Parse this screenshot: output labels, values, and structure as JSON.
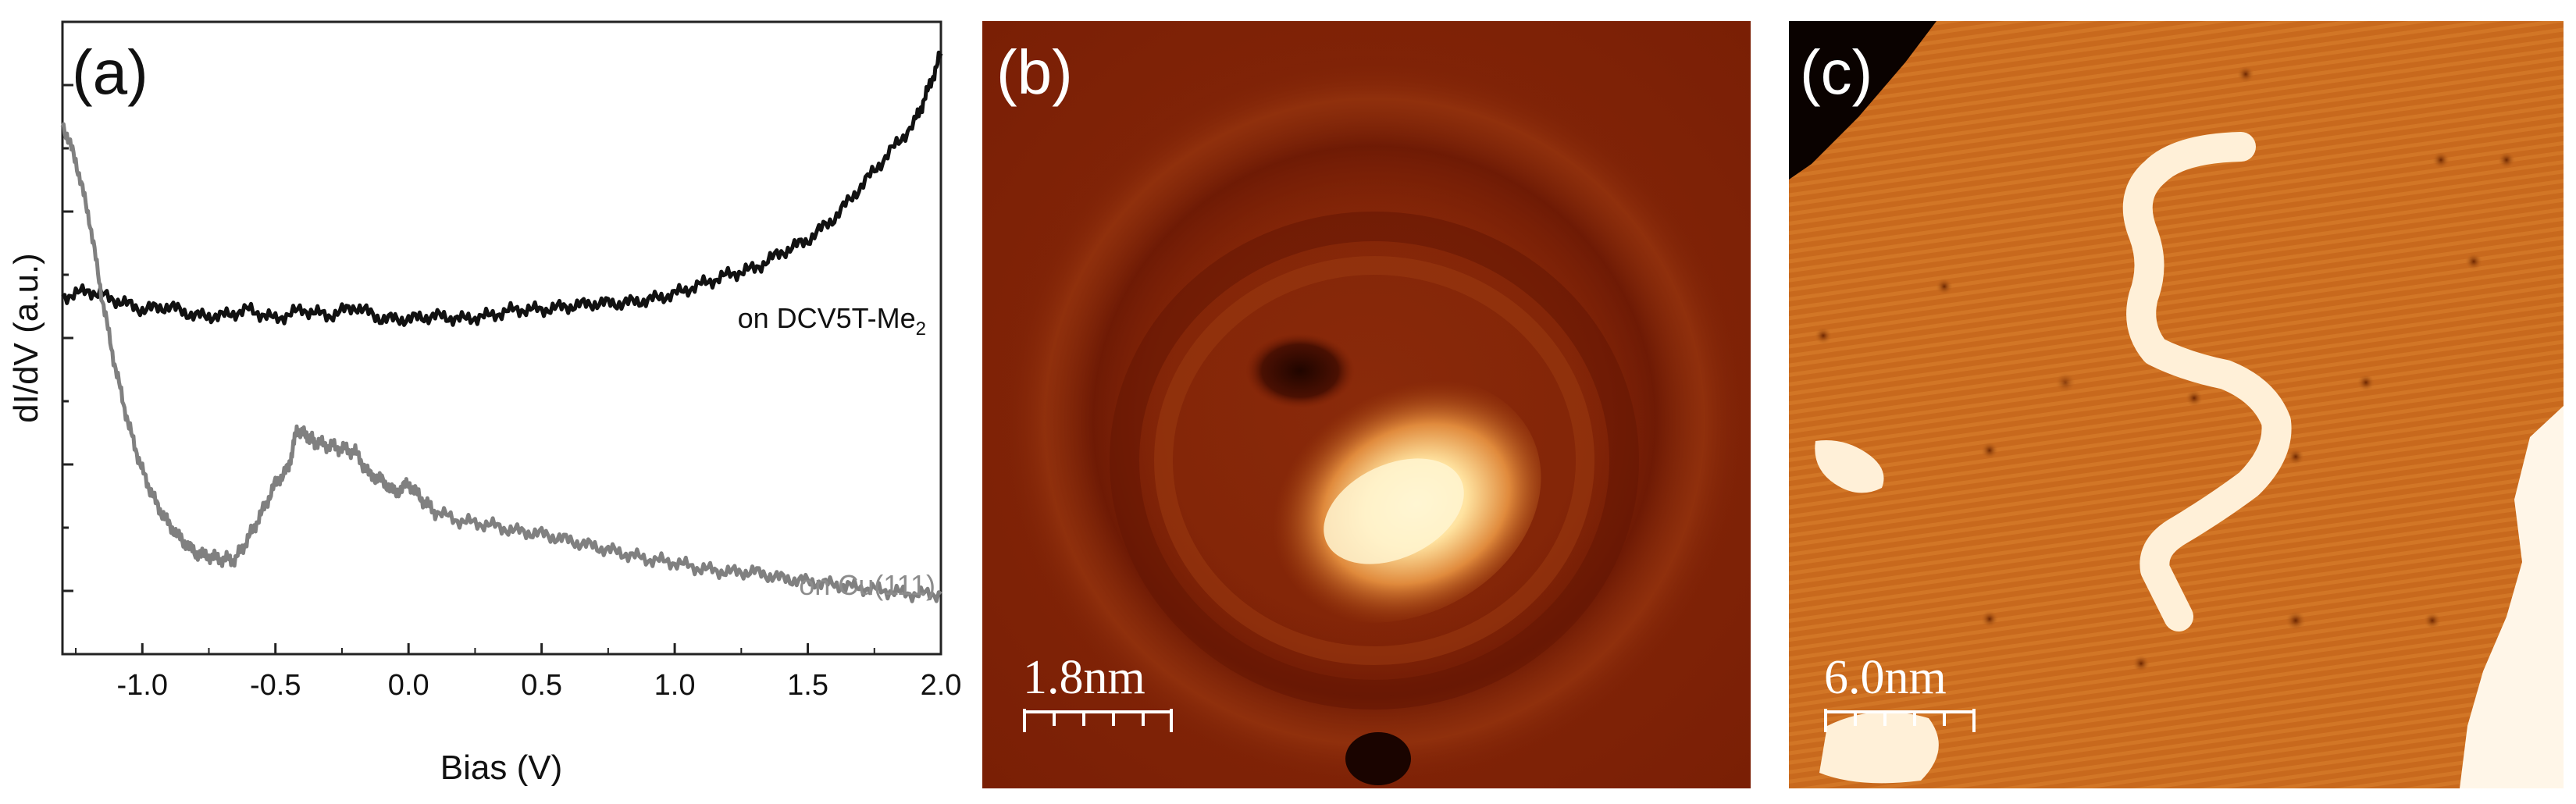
{
  "figure": {
    "panels": [
      {
        "label": "(a)"
      },
      {
        "label": "(b)",
        "scalebar": "1.8nm"
      },
      {
        "label": "(c)",
        "scalebar": "6.0nm"
      }
    ]
  },
  "chart_data": {
    "type": "line",
    "xlabel": "Bias (V)",
    "ylabel": "dI/dV (a.u.)",
    "xlim": [
      -1.3,
      2.0
    ],
    "ylim": [
      0,
      10
    ],
    "x_ticks": [
      "-1.0",
      "-0.5",
      "0.0",
      "0.5",
      "1.0",
      "1.5",
      "2.0"
    ],
    "x_tick_values": [
      -1.0,
      -0.5,
      0.0,
      0.5,
      1.0,
      1.5,
      2.0
    ],
    "y_tick_labels_shown": false,
    "series": [
      {
        "name": "on DCV5T-Me2",
        "color": "#111111",
        "x": [
          -1.3,
          -1.2,
          -1.1,
          -1.0,
          -0.9,
          -0.8,
          -0.7,
          -0.6,
          -0.5,
          -0.4,
          -0.3,
          -0.2,
          -0.1,
          0.0,
          0.1,
          0.2,
          0.3,
          0.4,
          0.5,
          0.6,
          0.7,
          0.8,
          0.9,
          1.0,
          1.1,
          1.2,
          1.3,
          1.4,
          1.5,
          1.6,
          1.7,
          1.8,
          1.9,
          1.95,
          2.0
        ],
        "y": [
          5.65,
          5.75,
          5.6,
          5.45,
          5.5,
          5.35,
          5.35,
          5.45,
          5.3,
          5.45,
          5.35,
          5.5,
          5.3,
          5.3,
          5.35,
          5.3,
          5.35,
          5.45,
          5.45,
          5.5,
          5.55,
          5.55,
          5.6,
          5.7,
          5.85,
          6.0,
          6.1,
          6.35,
          6.55,
          6.9,
          7.4,
          7.9,
          8.4,
          8.9,
          9.5
        ]
      },
      {
        "name": "on Cu(111)",
        "color": "#808080",
        "x": [
          -1.3,
          -1.25,
          -1.2,
          -1.15,
          -1.1,
          -1.05,
          -1.0,
          -0.95,
          -0.9,
          -0.85,
          -0.8,
          -0.75,
          -0.7,
          -0.65,
          -0.6,
          -0.55,
          -0.5,
          -0.45,
          -0.42,
          -0.38,
          -0.35,
          -0.3,
          -0.25,
          -0.2,
          -0.15,
          -0.1,
          -0.05,
          0.0,
          0.05,
          0.1,
          0.2,
          0.3,
          0.4,
          0.5,
          0.6,
          0.7,
          0.8,
          0.9,
          1.0,
          1.1,
          1.2,
          1.3,
          1.4,
          1.5,
          1.6,
          1.7,
          1.8,
          1.9,
          2.0
        ],
        "y": [
          8.4,
          7.8,
          6.9,
          5.6,
          4.5,
          3.6,
          2.9,
          2.4,
          2.05,
          1.8,
          1.6,
          1.55,
          1.5,
          1.5,
          1.85,
          2.25,
          2.7,
          2.95,
          3.55,
          3.45,
          3.35,
          3.3,
          3.25,
          3.2,
          2.85,
          2.75,
          2.55,
          2.7,
          2.45,
          2.25,
          2.1,
          2.05,
          1.95,
          1.9,
          1.8,
          1.7,
          1.6,
          1.5,
          1.45,
          1.35,
          1.3,
          1.3,
          1.2,
          1.15,
          1.1,
          1.05,
          1.0,
          0.95,
          0.95
        ]
      }
    ],
    "annotations": [
      {
        "text": "on DCV5T-Me",
        "subscript": "2",
        "series": "on DCV5T-Me2"
      },
      {
        "text": "on Cu(111)",
        "series": "on Cu(111)"
      }
    ]
  }
}
